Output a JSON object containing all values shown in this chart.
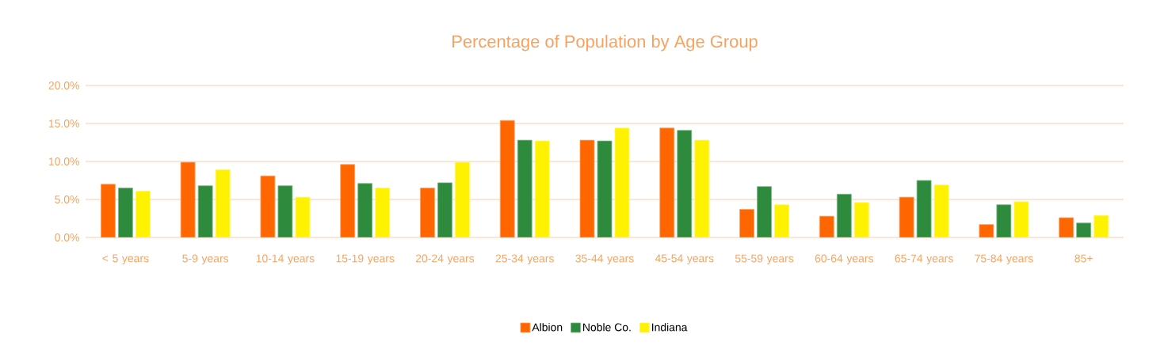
{
  "chart_data": {
    "type": "bar",
    "title": "Percentage of Population by Age Group",
    "categories": [
      "< 5 years",
      "5-9 years",
      "10-14 years",
      "15-19 years",
      "20-24 years",
      "25-34 years",
      "35-44 years",
      "45-54 years",
      "55-59 years",
      "60-64 years",
      "65-74 years",
      "75-84 years",
      "85+"
    ],
    "series": [
      {
        "name": "Albion",
        "color": "#ff6600",
        "values": [
          7.0,
          9.9,
          8.1,
          9.6,
          6.5,
          15.4,
          12.8,
          14.4,
          3.7,
          2.8,
          5.3,
          1.7,
          2.6
        ]
      },
      {
        "name": "Noble Co.",
        "color": "#2e8b3e",
        "values": [
          6.5,
          6.8,
          6.8,
          7.1,
          7.2,
          12.8,
          12.7,
          14.1,
          6.7,
          5.7,
          7.5,
          4.3,
          1.9
        ]
      },
      {
        "name": "Indiana",
        "color": "#fff200",
        "values": [
          6.1,
          8.9,
          5.3,
          6.5,
          9.9,
          12.7,
          14.4,
          12.8,
          4.3,
          4.6,
          6.9,
          4.7,
          2.9
        ]
      }
    ],
    "ylim": [
      0,
      20
    ],
    "yticks": [
      {
        "value": 0,
        "label": "0.0%"
      },
      {
        "value": 5,
        "label": "5.0%"
      },
      {
        "value": 10,
        "label": "10.0%"
      },
      {
        "value": 15,
        "label": "15.0%"
      },
      {
        "value": 20,
        "label": "20.0%"
      }
    ],
    "grid": "y",
    "legend": "bottom"
  }
}
